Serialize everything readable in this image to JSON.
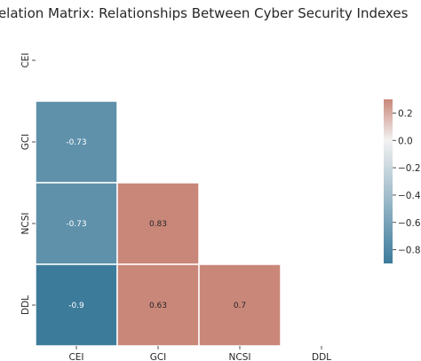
{
  "chart_data": {
    "type": "heatmap",
    "title": "Correlation Matrix: Relationships Between Cyber Security Indexes",
    "variables": [
      "CEI",
      "GCI",
      "NCSI",
      "DDL"
    ],
    "mask": "upper triangle including diagonal",
    "matrix": [
      [
        null,
        null,
        null,
        null
      ],
      [
        -0.73,
        null,
        null,
        null
      ],
      [
        -0.73,
        0.83,
        null,
        null
      ],
      [
        -0.9,
        0.63,
        0.7,
        null
      ]
    ],
    "cell_labels": [
      [
        null,
        null,
        null,
        null
      ],
      [
        "-0.73",
        null,
        null,
        null
      ],
      [
        "-0.73",
        "0.83",
        null,
        null
      ],
      [
        "-0.9",
        "0.63",
        "0.7",
        null
      ]
    ],
    "colorbar": {
      "vmin": -0.9,
      "vmax": 0.3,
      "center": 0,
      "ticks": [
        -0.8,
        -0.6,
        -0.4,
        -0.2,
        0.0,
        0.2
      ],
      "tick_labels": [
        "−0.8",
        "−0.6",
        "−0.4",
        "−0.2",
        "0.0",
        "0.2"
      ],
      "cmap": "diverging blue-white-red",
      "colors": {
        "negative": "#3d7b9b",
        "center": "#f2f2f2",
        "positive": "#c98779"
      }
    }
  }
}
